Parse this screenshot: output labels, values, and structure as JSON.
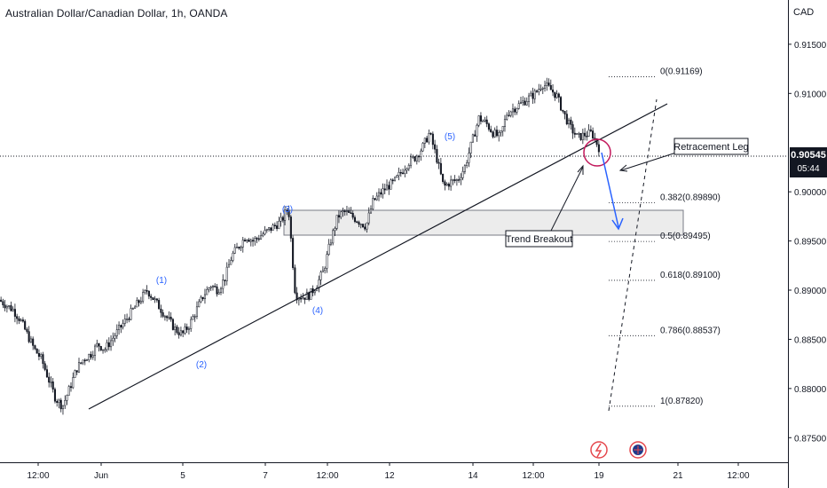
{
  "header": {
    "title": "Australian Dollar/Canadian Dollar, 1h, OANDA",
    "currency": "CAD"
  },
  "price_tag": {
    "price": "0.90545",
    "countdown": "05:44"
  },
  "chart_data": {
    "type": "candlestick",
    "title": "Australian Dollar/Canadian Dollar, 1h, OANDA",
    "y_unit": "CAD",
    "y_range": [
      0.8725,
      0.9195
    ],
    "y_ticks": [
      "0.91500",
      "0.91000",
      "0.90000",
      "0.89500",
      "0.89000",
      "0.88500",
      "0.88000",
      "0.87500"
    ],
    "x_ticks": [
      "12:00",
      "Jun",
      "5",
      "7",
      "12:00",
      "12",
      "14",
      "12:00",
      "19",
      "21",
      "12:00"
    ],
    "current_price": 0.90545,
    "trend_path": [
      0.889,
      0.8885,
      0.888,
      0.887,
      0.8855,
      0.884,
      0.883,
      0.881,
      0.879,
      0.8782,
      0.88,
      0.882,
      0.883,
      0.8835,
      0.8845,
      0.884,
      0.885,
      0.886,
      0.887,
      0.888,
      0.889,
      0.89,
      0.889,
      0.888,
      0.887,
      0.886,
      0.8855,
      0.8865,
      0.888,
      0.8895,
      0.8905,
      0.89,
      0.8912,
      0.8935,
      0.8945,
      0.8955,
      0.895,
      0.8955,
      0.896,
      0.8965,
      0.897,
      0.8985,
      0.8895,
      0.8893,
      0.8895,
      0.8905,
      0.892,
      0.895,
      0.8975,
      0.898,
      0.8975,
      0.897,
      0.8965,
      0.899,
      0.8998,
      0.9005,
      0.901,
      0.902,
      0.903,
      0.9035,
      0.9045,
      0.906,
      0.9035,
      0.9005,
      0.901,
      0.9012,
      0.9025,
      0.905,
      0.9075,
      0.907,
      0.906,
      0.9055,
      0.908,
      0.9085,
      0.909,
      0.9095,
      0.91,
      0.911,
      0.9105,
      0.9098,
      0.908,
      0.9065,
      0.9055,
      0.9058,
      0.906,
      0.9045
    ],
    "annotations": {
      "waves": [
        "(1)",
        "(2)",
        "(3)",
        "(4)",
        "(5)"
      ],
      "labels": [
        "Retracement Leg",
        "Trend Breakout"
      ],
      "fib_levels": [
        {
          "ratio": "0",
          "price": "0(0.91169)",
          "value": 0.91169
        },
        {
          "ratio": "0.382",
          "price": "0.382(0.89890)",
          "value": 0.8989
        },
        {
          "ratio": "0.5",
          "price": "0.5(0.89495)",
          "value": 0.89495
        },
        {
          "ratio": "0.618",
          "price": "0.618(0.89100)",
          "value": 0.891
        },
        {
          "ratio": "0.786",
          "price": "0.786(0.88537)",
          "value": 0.88537
        },
        {
          "ratio": "1",
          "price": "1(0.87820)",
          "value": 0.8782
        }
      ]
    }
  }
}
